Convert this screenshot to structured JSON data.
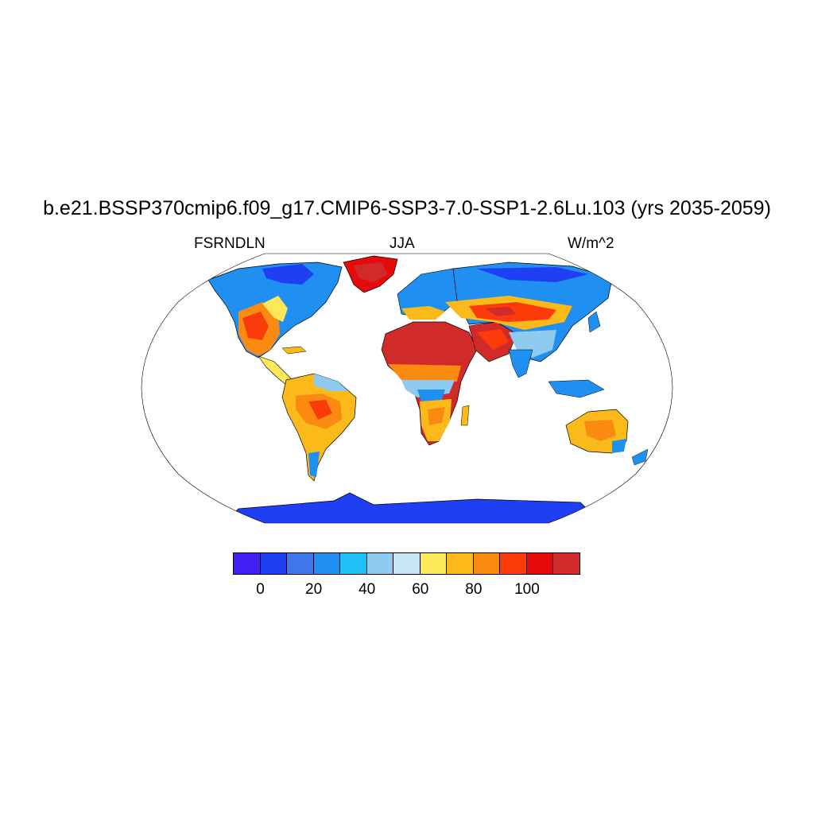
{
  "title": "b.e21.BSSP370cmip6.f09_g17.CMIP6-SSP3-7.0-SSP1-2.6Lu.103 (yrs 2035-2059)",
  "left_label": "FSRNDLN",
  "center_label": "JJA",
  "right_label": "W/m^2",
  "colorbar": {
    "colors": [
      "#3f1ff2",
      "#1f3ff2",
      "#3f77ea",
      "#1f8ff2",
      "#1fbff8",
      "#8fcbee",
      "#c8e6f6",
      "#fde85a",
      "#fbb91a",
      "#fb8a10",
      "#fb3c0a",
      "#e80a0a",
      "#d12a2a"
    ],
    "tick_labels": [
      "0",
      "20",
      "40",
      "60",
      "80",
      "100"
    ]
  },
  "map": {
    "projection": "Robinson",
    "land_fill_colors": [
      "#1f3ff2",
      "#3f77ea",
      "#1f8ff2",
      "#8fcbee",
      "#fde85a",
      "#fbb91a",
      "#fb8a10",
      "#fb3c0a",
      "#d12a2a"
    ]
  }
}
